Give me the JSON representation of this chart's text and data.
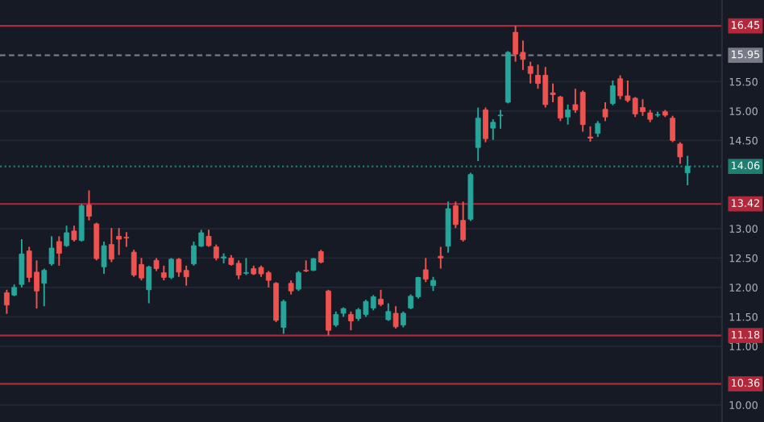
{
  "chart_data": {
    "type": "candlestick",
    "categories": [
      null,
      null,
      null,
      null,
      null,
      null,
      null,
      null,
      null,
      null,
      null,
      null,
      null,
      null,
      null,
      null,
      null,
      null,
      null,
      null,
      null,
      null,
      null,
      null,
      null,
      null,
      null,
      null,
      null,
      null,
      null,
      null,
      null,
      null,
      null,
      null,
      null,
      null,
      null,
      null,
      null,
      null,
      null,
      null,
      null,
      null,
      null,
      null,
      null,
      null,
      null,
      null,
      null,
      null,
      null,
      null,
      null,
      null,
      null,
      null,
      null,
      null,
      null,
      null,
      null,
      null,
      null,
      null,
      null,
      null,
      null,
      null,
      null,
      null,
      null,
      null,
      null,
      null,
      null,
      null,
      null,
      null,
      null,
      null,
      null,
      null,
      null,
      null,
      null,
      null,
      null,
      null
    ],
    "ohlc": [
      [
        11.91,
        11.96,
        11.55,
        11.7
      ],
      [
        11.87,
        12.05,
        11.85,
        12.0
      ],
      [
        12.05,
        12.82,
        12.0,
        12.57
      ],
      [
        12.62,
        12.69,
        12.09,
        12.17
      ],
      [
        12.26,
        12.46,
        11.64,
        11.94
      ],
      [
        12.07,
        12.32,
        11.68,
        12.29
      ],
      [
        12.4,
        12.87,
        12.37,
        12.67
      ],
      [
        12.78,
        12.87,
        12.37,
        12.58
      ],
      [
        12.71,
        13.05,
        12.69,
        12.93
      ],
      [
        12.96,
        13.05,
        12.78,
        12.81
      ],
      [
        12.8,
        13.42,
        12.78,
        13.39
      ],
      [
        13.4,
        13.65,
        13.14,
        13.21
      ],
      [
        13.08,
        13.1,
        12.46,
        12.49
      ],
      [
        12.35,
        12.78,
        12.23,
        12.71
      ],
      [
        12.73,
        13.01,
        12.43,
        12.48
      ],
      [
        12.87,
        13.01,
        12.55,
        12.82
      ],
      [
        12.85,
        12.94,
        12.69,
        12.84
      ],
      [
        12.6,
        12.64,
        12.18,
        12.21
      ],
      [
        12.39,
        12.5,
        12.12,
        12.16
      ],
      [
        11.96,
        12.37,
        11.73,
        12.35
      ],
      [
        12.46,
        12.5,
        12.28,
        12.32
      ],
      [
        12.25,
        12.37,
        12.12,
        12.17
      ],
      [
        12.17,
        12.5,
        12.14,
        12.48
      ],
      [
        12.48,
        12.5,
        12.18,
        12.26
      ],
      [
        12.29,
        12.37,
        12.03,
        12.18
      ],
      [
        12.4,
        12.78,
        12.37,
        12.71
      ],
      [
        12.7,
        12.98,
        12.69,
        12.93
      ],
      [
        12.87,
        12.98,
        12.69,
        12.71
      ],
      [
        12.69,
        12.73,
        12.46,
        12.5
      ],
      [
        12.5,
        12.58,
        12.41,
        12.52
      ],
      [
        12.5,
        12.55,
        12.37,
        12.39
      ],
      [
        12.41,
        12.46,
        12.14,
        12.21
      ],
      [
        12.24,
        12.5,
        12.21,
        12.25
      ],
      [
        12.32,
        12.37,
        12.21,
        12.23
      ],
      [
        12.34,
        12.37,
        12.18,
        12.23
      ],
      [
        12.25,
        12.28,
        12.0,
        12.12
      ],
      [
        12.07,
        12.09,
        11.41,
        11.44
      ],
      [
        11.32,
        11.79,
        11.21,
        11.76
      ],
      [
        12.07,
        12.12,
        11.88,
        11.94
      ],
      [
        11.97,
        12.28,
        11.94,
        12.25
      ],
      [
        12.29,
        12.46,
        12.26,
        12.28
      ],
      [
        12.29,
        12.5,
        12.28,
        12.49
      ],
      [
        12.61,
        12.64,
        12.41,
        12.43
      ],
      [
        11.94,
        11.96,
        11.18,
        11.27
      ],
      [
        11.36,
        11.59,
        11.33,
        11.54
      ],
      [
        11.56,
        11.66,
        11.5,
        11.64
      ],
      [
        11.54,
        11.59,
        11.27,
        11.43
      ],
      [
        11.47,
        11.65,
        11.43,
        11.62
      ],
      [
        11.54,
        11.79,
        11.5,
        11.76
      ],
      [
        11.65,
        11.87,
        11.61,
        11.84
      ],
      [
        11.8,
        11.96,
        11.68,
        11.71
      ],
      [
        11.45,
        11.73,
        11.43,
        11.59
      ],
      [
        11.56,
        11.68,
        11.3,
        11.33
      ],
      [
        11.36,
        11.59,
        11.32,
        11.56
      ],
      [
        11.65,
        11.88,
        11.63,
        11.85
      ],
      [
        11.84,
        12.18,
        11.81,
        12.17
      ],
      [
        12.3,
        12.5,
        12.09,
        12.14
      ],
      [
        12.03,
        12.18,
        11.94,
        12.12
      ],
      [
        12.53,
        12.69,
        12.32,
        12.5
      ],
      [
        12.7,
        13.46,
        12.59,
        13.34
      ],
      [
        13.39,
        13.46,
        13.01,
        13.07
      ],
      [
        13.14,
        13.46,
        12.78,
        12.81
      ],
      [
        13.16,
        13.95,
        13.13,
        13.92
      ],
      [
        14.38,
        15.06,
        14.15,
        14.88
      ],
      [
        15.02,
        15.06,
        14.47,
        14.53
      ],
      [
        14.71,
        14.86,
        14.51,
        14.81
      ],
      [
        14.92,
        15.02,
        14.7,
        14.93
      ],
      [
        15.15,
        16.02,
        15.13,
        16.0
      ],
      [
        16.34,
        16.45,
        15.84,
        15.97
      ],
      [
        16.0,
        16.2,
        15.7,
        15.88
      ],
      [
        15.76,
        15.84,
        15.47,
        15.64
      ],
      [
        15.61,
        15.79,
        15.38,
        15.47
      ],
      [
        15.61,
        15.75,
        15.06,
        15.11
      ],
      [
        15.31,
        15.47,
        15.15,
        15.28
      ],
      [
        15.24,
        15.26,
        14.83,
        14.88
      ],
      [
        14.9,
        15.11,
        14.77,
        15.02
      ],
      [
        15.11,
        15.38,
        14.97,
        15.02
      ],
      [
        15.32,
        15.35,
        14.65,
        14.77
      ],
      [
        14.56,
        14.74,
        14.48,
        14.54
      ],
      [
        14.62,
        14.83,
        14.56,
        14.79
      ],
      [
        15.03,
        15.15,
        14.83,
        14.9
      ],
      [
        15.13,
        15.52,
        15.1,
        15.43
      ],
      [
        15.55,
        15.61,
        15.2,
        15.26
      ],
      [
        15.26,
        15.52,
        15.15,
        15.18
      ],
      [
        15.22,
        15.24,
        14.9,
        14.95
      ],
      [
        15.06,
        15.2,
        14.92,
        14.99
      ],
      [
        14.97,
        15.02,
        14.81,
        14.86
      ],
      [
        14.93,
        14.99,
        14.9,
        14.94
      ],
      [
        14.99,
        15.02,
        14.9,
        14.93
      ],
      [
        14.88,
        14.92,
        14.47,
        14.5
      ],
      [
        14.44,
        14.47,
        14.1,
        14.22
      ],
      [
        13.95,
        14.24,
        13.74,
        14.06
      ]
    ],
    "colors": [
      "#ef5350",
      "#26a69a",
      "#26a69a",
      "#ef5350",
      "#ef5350",
      "#26a69a",
      "#26a69a",
      "#ef5350",
      "#26a69a",
      "#ef5350",
      "#26a69a",
      "#ef5350",
      "#ef5350",
      "#26a69a",
      "#ef5350",
      "#ef5350",
      "#ef5350",
      "#ef5350",
      "#ef5350",
      "#26a69a",
      "#ef5350",
      "#ef5350",
      "#26a69a",
      "#ef5350",
      "#ef5350",
      "#26a69a",
      "#26a69a",
      "#ef5350",
      "#ef5350",
      "#26a69a",
      "#ef5350",
      "#ef5350",
      "#26a69a",
      "#ef5350",
      "#ef5350",
      "#ef5350",
      "#ef5350",
      "#26a69a",
      "#ef5350",
      "#26a69a",
      "#ef5350",
      "#26a69a",
      "#ef5350",
      "#ef5350",
      "#26a69a",
      "#26a69a",
      "#ef5350",
      "#26a69a",
      "#26a69a",
      "#26a69a",
      "#ef5350",
      "#26a69a",
      "#ef5350",
      "#26a69a",
      "#26a69a",
      "#26a69a",
      "#ef5350",
      "#26a69a",
      "#ef5350",
      "#26a69a",
      "#ef5350",
      "#ef5350",
      "#26a69a",
      "#26a69a",
      "#ef5350",
      "#26a69a",
      "#26a69a",
      "#26a69a",
      "#ef5350",
      "#ef5350",
      "#ef5350",
      "#ef5350",
      "#ef5350",
      "#ef5350",
      "#ef5350",
      "#26a69a",
      "#ef5350",
      "#ef5350",
      "#ef5350",
      "#26a69a",
      "#ef5350",
      "#26a69a",
      "#ef5350",
      "#ef5350",
      "#ef5350",
      "#ef5350",
      "#ef5350",
      "#26a69a",
      "#ef5350",
      "#ef5350",
      "#ef5350",
      "#26a69a"
    ],
    "ylim": [
      9.71,
      16.89
    ],
    "yticks": [
      {
        "value": 10,
        "label": "10.00"
      },
      {
        "value": 11,
        "label": "11.00"
      },
      {
        "value": 11.5,
        "label": "11.50"
      },
      {
        "value": 12,
        "label": "12.00"
      },
      {
        "value": 12.5,
        "label": "12.50"
      },
      {
        "value": 13,
        "label": "13.00"
      },
      {
        "value": 14.5,
        "label": "14.50"
      },
      {
        "value": 15,
        "label": "15.00"
      },
      {
        "value": 15.5,
        "label": "15.50"
      }
    ],
    "ref_lines": [
      {
        "axis": "y",
        "value": 16.45,
        "label": "16.45",
        "color": "#b2283a",
        "line_style": "solid"
      },
      {
        "axis": "y",
        "value": 15.95,
        "label": "15.95",
        "color": "#787b86",
        "line_style": "dashed"
      },
      {
        "axis": "y",
        "value": 14.06,
        "label": "14.06",
        "color": "#1e7f70",
        "line_style": "dotted"
      },
      {
        "axis": "y",
        "value": 13.42,
        "label": "13.42",
        "color": "#b2283a",
        "line_style": "solid"
      },
      {
        "axis": "y",
        "value": 11.18,
        "label": "11.18",
        "color": "#b2283a",
        "line_style": "solid"
      },
      {
        "axis": "y",
        "value": 10.36,
        "label": "10.36",
        "color": "#b2283a",
        "line_style": "solid"
      }
    ],
    "grid": "y"
  }
}
